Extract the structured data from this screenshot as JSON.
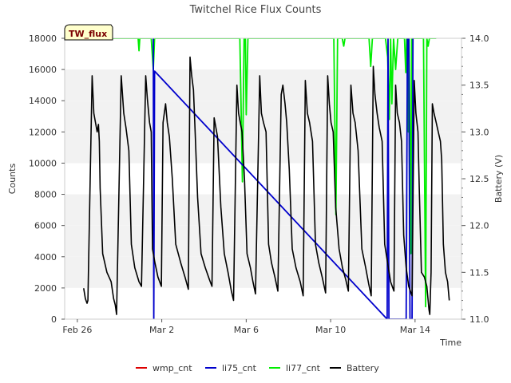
{
  "chart_data": {
    "type": "line",
    "title": "Twitchel Rice Flux Counts",
    "badge": "TW_flux",
    "xlabel": "Time",
    "ylabel": "Counts",
    "y2label": "Battery (V)",
    "x_domain_days": [
      -0.6,
      18.2
    ],
    "x_ticks": [
      {
        "day": 0,
        "label": "Feb 26"
      },
      {
        "day": 4,
        "label": "Mar 2"
      },
      {
        "day": 8,
        "label": "Mar 6"
      },
      {
        "day": 12,
        "label": "Mar 10"
      },
      {
        "day": 16,
        "label": "Mar 14"
      }
    ],
    "ylim": [
      0,
      18000
    ],
    "y_ticks": [
      0,
      2000,
      4000,
      6000,
      8000,
      10000,
      12000,
      14000,
      16000,
      18000
    ],
    "y_tick_labels": [
      "0",
      "2000",
      "4000",
      "6000",
      "8000",
      "10000",
      "12000",
      "14000",
      "16000",
      "18000"
    ],
    "y2lim": [
      11.0,
      14.0
    ],
    "y2_ticks": [
      11.0,
      11.5,
      12.0,
      12.5,
      13.0,
      13.5,
      14.0
    ],
    "y2_tick_labels": [
      "11.0",
      "11.5",
      "12.0",
      "12.5",
      "13.0",
      "13.5",
      "14.0"
    ],
    "grid_bands": true,
    "legend_position": "bottom",
    "legend": [
      {
        "name": "wmp_cnt",
        "color": "#dd0000"
      },
      {
        "name": "li75_cnt",
        "color": "#0000cc"
      },
      {
        "name": "li77_cnt",
        "color": "#00ee00"
      },
      {
        "name": "Battery",
        "color": "#000000"
      }
    ],
    "series": [
      {
        "name": "li77_cnt",
        "axis": "left",
        "color": "#00ee00",
        "points": [
          [
            0.0,
            18000
          ],
          [
            2.88,
            18000
          ],
          [
            2.92,
            17200
          ],
          [
            2.96,
            18000
          ],
          [
            3.5,
            18000
          ],
          [
            3.6,
            16000
          ],
          [
            3.66,
            18000
          ],
          [
            7.7,
            18000
          ],
          [
            7.82,
            8800
          ],
          [
            7.9,
            18000
          ],
          [
            7.96,
            18000
          ],
          [
            8.0,
            13100
          ],
          [
            8.08,
            18000
          ],
          [
            12.15,
            18000
          ],
          [
            12.25,
            6700
          ],
          [
            12.33,
            18000
          ],
          [
            12.55,
            18000
          ],
          [
            12.62,
            17500
          ],
          [
            12.68,
            18000
          ],
          [
            13.82,
            18000
          ],
          [
            13.9,
            16200
          ],
          [
            13.98,
            18000
          ],
          [
            14.6,
            18000
          ],
          [
            14.7,
            16800
          ],
          [
            14.78,
            12800
          ],
          [
            14.84,
            18000
          ],
          [
            14.9,
            13800
          ],
          [
            14.98,
            18000
          ],
          [
            15.08,
            16000
          ],
          [
            15.18,
            18000
          ],
          [
            15.5,
            18000
          ],
          [
            15.56,
            15800
          ],
          [
            15.6,
            18000
          ],
          [
            15.68,
            12000
          ],
          [
            15.72,
            18000
          ],
          [
            15.8,
            4200
          ],
          [
            15.84,
            18000
          ],
          [
            16.4,
            18000
          ],
          [
            16.5,
            800
          ],
          [
            16.56,
            18000
          ],
          [
            16.62,
            17500
          ],
          [
            16.68,
            18000
          ],
          [
            17.0,
            18000
          ]
        ]
      },
      {
        "name": "li75_cnt",
        "axis": "left",
        "color": "#0000cc",
        "points": [
          [
            3.6,
            18000
          ],
          [
            3.62,
            0
          ],
          [
            3.66,
            15900
          ],
          [
            14.68,
            0
          ],
          [
            14.72,
            18000
          ],
          [
            14.76,
            0
          ],
          [
            15.58,
            0
          ],
          [
            15.64,
            18000
          ],
          [
            15.7,
            18000
          ],
          [
            15.76,
            0
          ],
          [
            15.86,
            0
          ],
          [
            15.9,
            18000
          ]
        ]
      },
      {
        "name": "Battery",
        "axis": "right",
        "color": "#000000",
        "points": [
          [
            0.3,
            11.33
          ],
          [
            0.38,
            11.22
          ],
          [
            0.46,
            11.17
          ],
          [
            0.5,
            11.2
          ],
          [
            0.7,
            13.6
          ],
          [
            0.78,
            13.2
          ],
          [
            0.86,
            13.1
          ],
          [
            0.94,
            13.0
          ],
          [
            1.0,
            13.08
          ],
          [
            1.04,
            12.9
          ],
          [
            1.08,
            12.4
          ],
          [
            1.2,
            11.7
          ],
          [
            1.4,
            11.5
          ],
          [
            1.6,
            11.4
          ],
          [
            1.72,
            11.22
          ],
          [
            1.8,
            11.15
          ],
          [
            1.86,
            11.05
          ],
          [
            2.08,
            13.6
          ],
          [
            2.2,
            13.2
          ],
          [
            2.3,
            13.05
          ],
          [
            2.44,
            12.8
          ],
          [
            2.56,
            11.8
          ],
          [
            2.72,
            11.55
          ],
          [
            2.92,
            11.4
          ],
          [
            3.04,
            11.35
          ],
          [
            3.24,
            13.6
          ],
          [
            3.32,
            13.35
          ],
          [
            3.42,
            13.1
          ],
          [
            3.5,
            13.0
          ],
          [
            3.56,
            11.75
          ],
          [
            3.68,
            11.6
          ],
          [
            3.82,
            11.45
          ],
          [
            3.98,
            11.35
          ],
          [
            4.06,
            13.1
          ],
          [
            4.18,
            13.3
          ],
          [
            4.26,
            13.1
          ],
          [
            4.36,
            12.95
          ],
          [
            4.5,
            12.5
          ],
          [
            4.66,
            11.8
          ],
          [
            4.9,
            11.6
          ],
          [
            5.1,
            11.45
          ],
          [
            5.26,
            11.32
          ],
          [
            5.34,
            13.8
          ],
          [
            5.42,
            13.6
          ],
          [
            5.5,
            13.45
          ],
          [
            5.58,
            13.0
          ],
          [
            5.7,
            12.3
          ],
          [
            5.86,
            11.7
          ],
          [
            6.06,
            11.55
          ],
          [
            6.26,
            11.42
          ],
          [
            6.38,
            11.35
          ],
          [
            6.48,
            13.15
          ],
          [
            6.56,
            13.05
          ],
          [
            6.64,
            12.95
          ],
          [
            6.8,
            12.2
          ],
          [
            6.96,
            11.7
          ],
          [
            7.14,
            11.5
          ],
          [
            7.3,
            11.3
          ],
          [
            7.4,
            11.2
          ],
          [
            7.56,
            13.5
          ],
          [
            7.64,
            13.2
          ],
          [
            7.72,
            13.1
          ],
          [
            7.8,
            13.0
          ],
          [
            7.92,
            12.5
          ],
          [
            8.04,
            11.7
          ],
          [
            8.2,
            11.55
          ],
          [
            8.32,
            11.4
          ],
          [
            8.44,
            11.27
          ],
          [
            8.64,
            13.6
          ],
          [
            8.72,
            13.2
          ],
          [
            8.82,
            13.1
          ],
          [
            8.94,
            13.0
          ],
          [
            9.06,
            11.8
          ],
          [
            9.2,
            11.6
          ],
          [
            9.36,
            11.45
          ],
          [
            9.5,
            11.3
          ],
          [
            9.66,
            13.4
          ],
          [
            9.74,
            13.5
          ],
          [
            9.84,
            13.3
          ],
          [
            9.92,
            13.1
          ],
          [
            10.04,
            12.6
          ],
          [
            10.18,
            11.75
          ],
          [
            10.36,
            11.55
          ],
          [
            10.56,
            11.4
          ],
          [
            10.7,
            11.25
          ],
          [
            10.8,
            13.55
          ],
          [
            10.9,
            13.2
          ],
          [
            11.0,
            13.1
          ],
          [
            11.14,
            12.9
          ],
          [
            11.28,
            11.8
          ],
          [
            11.44,
            11.6
          ],
          [
            11.6,
            11.45
          ],
          [
            11.76,
            11.28
          ],
          [
            11.86,
            13.6
          ],
          [
            11.94,
            13.3
          ],
          [
            12.02,
            13.1
          ],
          [
            12.12,
            13.0
          ],
          [
            12.24,
            12.2
          ],
          [
            12.4,
            11.75
          ],
          [
            12.56,
            11.55
          ],
          [
            12.72,
            11.42
          ],
          [
            12.84,
            11.3
          ],
          [
            12.96,
            13.5
          ],
          [
            13.06,
            13.2
          ],
          [
            13.16,
            13.1
          ],
          [
            13.3,
            12.8
          ],
          [
            13.48,
            11.75
          ],
          [
            13.66,
            11.55
          ],
          [
            13.8,
            11.38
          ],
          [
            13.92,
            11.25
          ],
          [
            14.02,
            13.7
          ],
          [
            14.1,
            13.4
          ],
          [
            14.2,
            13.2
          ],
          [
            14.3,
            13.05
          ],
          [
            14.44,
            12.9
          ],
          [
            14.56,
            11.8
          ],
          [
            14.7,
            11.6
          ],
          [
            14.84,
            11.4
          ],
          [
            15.0,
            11.3
          ],
          [
            15.08,
            13.5
          ],
          [
            15.16,
            13.2
          ],
          [
            15.26,
            13.1
          ],
          [
            15.36,
            12.9
          ],
          [
            15.46,
            11.9
          ],
          [
            15.58,
            11.55
          ],
          [
            15.7,
            11.35
          ],
          [
            15.86,
            11.25
          ],
          [
            15.96,
            13.55
          ],
          [
            16.04,
            13.2
          ],
          [
            16.14,
            13.0
          ],
          [
            16.2,
            12.4
          ],
          [
            16.3,
            11.5
          ],
          [
            16.44,
            11.45
          ],
          [
            16.56,
            11.35
          ],
          [
            16.66,
            11.1
          ],
          [
            16.7,
            11.05
          ],
          [
            16.76,
            11.5
          ],
          [
            16.82,
            13.3
          ],
          [
            16.9,
            13.2
          ],
          [
            17.0,
            13.1
          ],
          [
            17.1,
            13.0
          ],
          [
            17.2,
            12.9
          ],
          [
            17.26,
            12.7
          ],
          [
            17.34,
            11.8
          ],
          [
            17.44,
            11.5
          ],
          [
            17.54,
            11.4
          ],
          [
            17.62,
            11.2
          ]
        ]
      }
    ]
  }
}
